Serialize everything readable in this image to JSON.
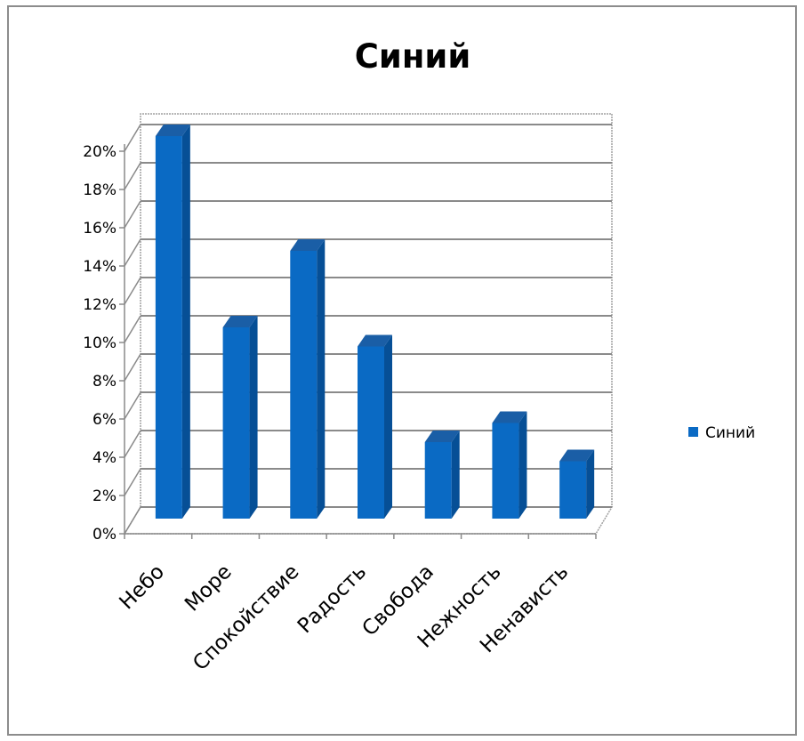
{
  "chart_data": {
    "type": "bar",
    "title": "Синий",
    "categories": [
      "Небо",
      "Море",
      "Спокойствие",
      "Радость",
      "Свобода",
      "Нежность",
      "Ненависть"
    ],
    "series": [
      {
        "name": "Синий",
        "values": [
          0.2,
          0.1,
          0.14,
          0.09,
          0.04,
          0.05,
          0.03
        ]
      }
    ],
    "ylim": [
      0,
      0.2
    ],
    "yticks": [
      "0%",
      "2%",
      "4%",
      "6%",
      "8%",
      "10%",
      "12%",
      "14%",
      "16%",
      "18%",
      "20%"
    ],
    "grid": true,
    "legend_position": "right",
    "bar_color": "#0a6ac4",
    "bar_side_color": "#064f96",
    "bar_top_color": "#1a5ea6"
  }
}
